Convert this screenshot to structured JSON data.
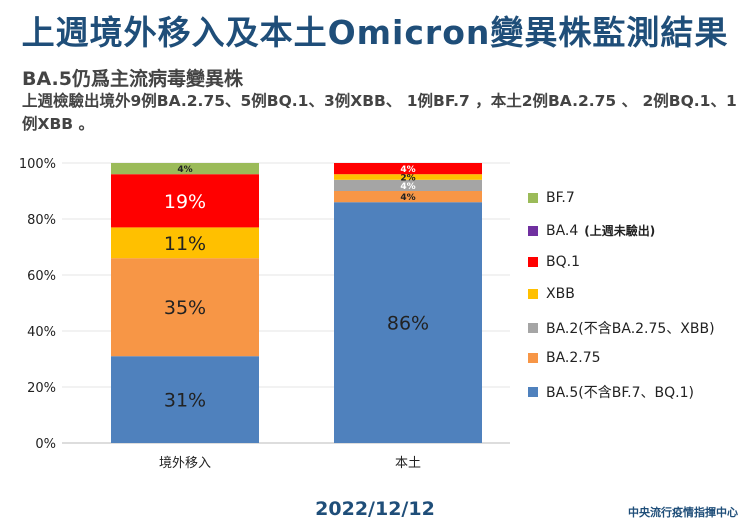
{
  "title": "上週境外移入及本土Omicron變異株監測結果",
  "subtitle": "BA.5仍爲主流病毒變異株",
  "description": "上週檢驗出境外9例BA.2.75、5例BQ.1、3例XBB、 1例BF.7 ，本土2例BA.2.75 、 2例BQ.1、1例XBB 。",
  "date": "2022/12/12",
  "org": "中央流行疫情指揮中心",
  "legend_note": "(上週未驗出)",
  "chart_data": {
    "type": "bar",
    "stacked": true,
    "categories": [
      "境外移入",
      "本土"
    ],
    "ylim": [
      0,
      100
    ],
    "yticks": [
      "0%",
      "20%",
      "40%",
      "60%",
      "80%",
      "100%"
    ],
    "series": [
      {
        "name": "BA.5(不含BF.7、BQ.1)",
        "color": "#4f81bd",
        "values": [
          31,
          86
        ]
      },
      {
        "name": "BA.2.75",
        "color": "#f79646",
        "values": [
          35,
          4
        ]
      },
      {
        "name": "BA.2(不含BA.2.75、XBB)",
        "color": "#a5a5a5",
        "values": [
          0,
          4
        ]
      },
      {
        "name": "XBB",
        "color": "#ffc000",
        "values": [
          11,
          2
        ]
      },
      {
        "name": "BQ.1",
        "color": "#ff0000",
        "values": [
          19,
          4
        ]
      },
      {
        "name": "BA.4",
        "color": "#7030a0",
        "values": [
          0,
          0
        ]
      },
      {
        "name": "BF.7",
        "color": "#9bbb59",
        "values": [
          4,
          0
        ]
      }
    ],
    "legend_order": [
      "BF.7",
      "BA.4",
      "BQ.1",
      "XBB",
      "BA.2(不含BA.2.75、XBB)",
      "BA.2.75",
      "BA.5(不含BF.7、BQ.1)"
    ],
    "legend": "right"
  }
}
